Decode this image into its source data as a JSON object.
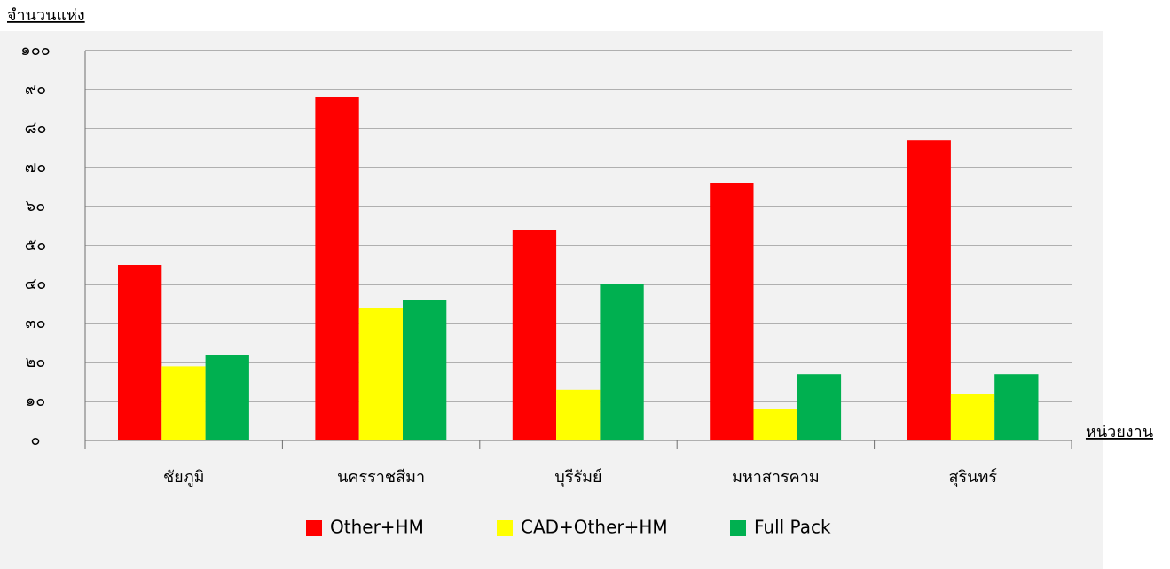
{
  "chart_data": {
    "type": "bar",
    "y_label": "จำนวนแห่ง",
    "x_label": "หน่วยงาน",
    "categories": [
      "ชัยภูมิ",
      "นครราชสีมา",
      "บุรีรัมย์",
      "มหาสารคาม",
      "สุรินทร์"
    ],
    "series": [
      {
        "name": "Other+HM",
        "color": "#ff0000",
        "values": [
          45,
          88,
          54,
          66,
          77
        ]
      },
      {
        "name": "CAD+Other+HM",
        "color": "#ffff00",
        "values": [
          19,
          34,
          13,
          8,
          12
        ]
      },
      {
        "name": "Full Pack",
        "color": "#00b050",
        "values": [
          22,
          36,
          40,
          17,
          17
        ]
      }
    ],
    "ylim": [
      0,
      100
    ],
    "yticks": [
      {
        "value": 0,
        "label": "๐"
      },
      {
        "value": 10,
        "label": "๑๐"
      },
      {
        "value": 20,
        "label": "๒๐"
      },
      {
        "value": 30,
        "label": "๓๐"
      },
      {
        "value": 40,
        "label": "๔๐"
      },
      {
        "value": 50,
        "label": "๕๐"
      },
      {
        "value": 60,
        "label": "๖๐"
      },
      {
        "value": 70,
        "label": "๗๐"
      },
      {
        "value": 80,
        "label": "๘๐"
      },
      {
        "value": 90,
        "label": "๙๐"
      },
      {
        "value": 100,
        "label": "๑๐๐"
      }
    ],
    "grid": true,
    "legend": "bottom"
  }
}
